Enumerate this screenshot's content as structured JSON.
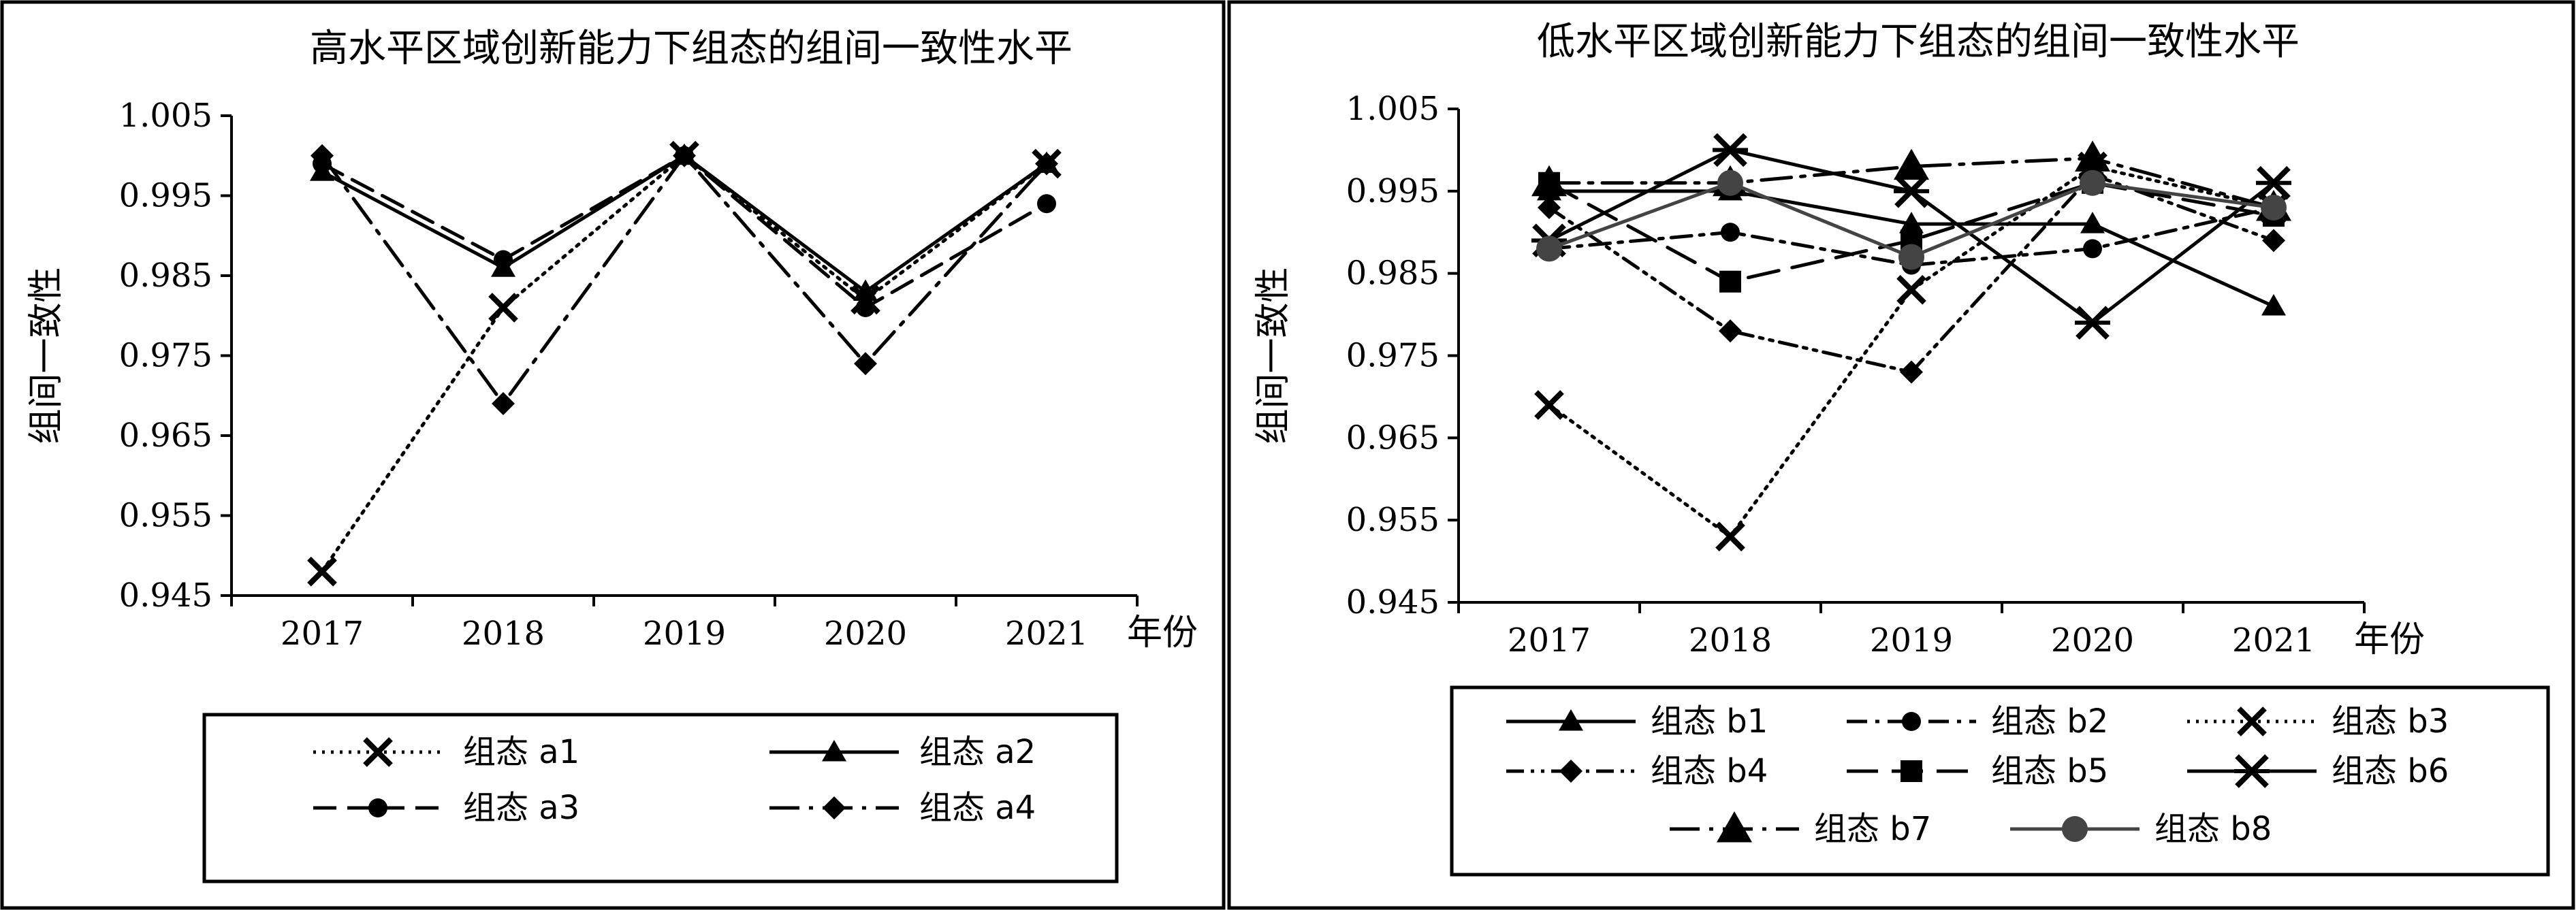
{
  "x_axis_unit": "年份",
  "chart_data": [
    {
      "type": "line",
      "title": "高水平区域创新能力下组态的组间一致性水平",
      "xlabel": "年份",
      "ylabel": "组间一致性",
      "categories": [
        "2017",
        "2018",
        "2019",
        "2020",
        "2021"
      ],
      "ylim": [
        0.945,
        1.005
      ],
      "yticks": [
        "0.945",
        "0.955",
        "0.965",
        "0.975",
        "0.985",
        "0.995",
        "1.005"
      ],
      "grid": false,
      "legend_position": "bottom",
      "series": [
        {
          "name": "组态 a1",
          "values": [
            0.948,
            0.981,
            1.0,
            0.982,
            0.999
          ],
          "marker": "x",
          "dash": "dotted"
        },
        {
          "name": "组态 a2",
          "values": [
            0.998,
            0.986,
            1.0,
            0.983,
            0.999
          ],
          "marker": "triangle",
          "dash": "solid"
        },
        {
          "name": "组态 a3",
          "values": [
            0.999,
            0.987,
            1.0,
            0.981,
            0.994
          ],
          "marker": "circle",
          "dash": "dashed"
        },
        {
          "name": "组态 a4",
          "values": [
            1.0,
            0.969,
            1.0,
            0.974,
            0.999
          ],
          "marker": "diamond",
          "dash": "longdashdot"
        }
      ]
    },
    {
      "type": "line",
      "title": "低水平区域创新能力下组态的组间一致性水平",
      "xlabel": "年份",
      "ylabel": "组间一致性",
      "categories": [
        "2017",
        "2018",
        "2019",
        "2020",
        "2021"
      ],
      "ylim": [
        0.945,
        1.005
      ],
      "yticks": [
        "0.945",
        "0.955",
        "0.965",
        "0.975",
        "0.985",
        "0.995",
        "1.005"
      ],
      "grid": false,
      "legend_position": "bottom",
      "series": [
        {
          "name": "组态 b1",
          "values": [
            0.995,
            0.995,
            0.991,
            0.991,
            0.981
          ],
          "marker": "triangle",
          "dash": "solid"
        },
        {
          "name": "组态 b2",
          "values": [
            0.988,
            0.99,
            0.986,
            0.988,
            0.993
          ],
          "marker": "circle",
          "dash": "dashdot"
        },
        {
          "name": "组态 b3",
          "values": [
            0.969,
            0.953,
            0.983,
            0.998,
            0.993
          ],
          "marker": "x",
          "dash": "dotted"
        },
        {
          "name": "组态 b4",
          "values": [
            0.993,
            0.978,
            0.973,
            0.997,
            0.989
          ],
          "marker": "diamond",
          "dash": "dashdotdot"
        },
        {
          "name": "组态 b5",
          "values": [
            0.996,
            0.984,
            0.989,
            0.996,
            0.992
          ],
          "marker": "square",
          "dash": "longdash"
        },
        {
          "name": "组态 b6",
          "values": [
            0.989,
            1.0,
            0.995,
            0.979,
            0.996
          ],
          "marker": "star",
          "dash": "solid"
        },
        {
          "name": "组态 b7",
          "values": [
            0.996,
            0.996,
            0.998,
            0.999,
            0.993
          ],
          "marker": "bigtriangle",
          "dash": "longdashdot"
        },
        {
          "name": "组态 b8",
          "values": [
            0.988,
            0.996,
            0.987,
            0.996,
            0.993
          ],
          "marker": "bigcircle",
          "dash": "solid",
          "color": "#444444"
        }
      ]
    }
  ]
}
